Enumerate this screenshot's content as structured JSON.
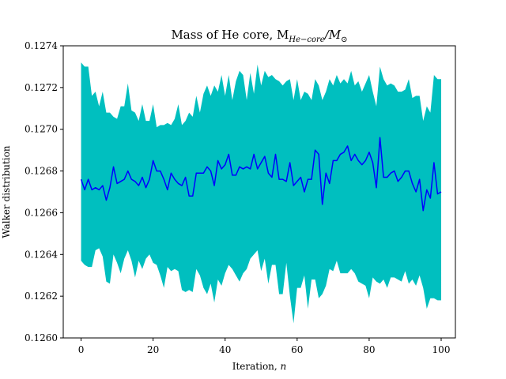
{
  "chart_data": {
    "type": "line",
    "title": "Mass of He core, M",
    "title_math_sub": "He−core",
    "title_math_tail": "/M",
    "title_math_sun": "⊙",
    "xlabel_text": "Iteration, ",
    "xlabel_var": "n",
    "ylabel": "Walker distribution",
    "xlim": [
      -4.95,
      103.95
    ],
    "ylim": [
      0.126,
      0.1274
    ],
    "xticks": [
      0,
      20,
      40,
      60,
      80,
      100
    ],
    "xtick_labels": [
      "0",
      "20",
      "40",
      "60",
      "80",
      "100"
    ],
    "yticks": [
      0.126,
      0.1262,
      0.1264,
      0.1266,
      0.1268,
      0.127,
      0.1272,
      0.1274
    ],
    "ytick_labels": [
      "0.1260",
      "0.1262",
      "0.1264",
      "0.1266",
      "0.1268",
      "0.1270",
      "0.1272",
      "0.1274"
    ],
    "grid": false,
    "band_color": "#00bfbf",
    "line_color": "#0000ff",
    "series": [
      {
        "kind": "median",
        "values": [
          0.12676,
          0.12671,
          0.12676,
          0.12671,
          0.12672,
          0.12671,
          0.12673,
          0.12666,
          0.12672,
          0.12682,
          0.12674,
          0.12675,
          0.12676,
          0.1268,
          0.12676,
          0.12675,
          0.12673,
          0.12677,
          0.12672,
          0.12676,
          0.12685,
          0.1268,
          0.1268,
          0.12676,
          0.12671,
          0.12679,
          0.12676,
          0.12674,
          0.12673,
          0.12677,
          0.12668,
          0.12668,
          0.12679,
          0.12679,
          0.12679,
          0.12682,
          0.1268,
          0.12673,
          0.12685,
          0.12681,
          0.12683,
          0.12688,
          0.12678,
          0.12678,
          0.12682,
          0.12681,
          0.12682,
          0.12681,
          0.12688,
          0.12681,
          0.12684,
          0.12687,
          0.12679,
          0.12677,
          0.12688,
          0.12676,
          0.12676,
          0.12675,
          0.12684,
          0.12673,
          0.12675,
          0.12677,
          0.1267,
          0.12676,
          0.12676,
          0.1269,
          0.12688,
          0.12664,
          0.12679,
          0.12674,
          0.12685,
          0.12685,
          0.12688,
          0.12689,
          0.12692,
          0.12685,
          0.12688,
          0.12685,
          0.12683,
          0.12685,
          0.12689,
          0.12684,
          0.12672,
          0.12696,
          0.12677,
          0.12677,
          0.12679,
          0.1268,
          0.12675,
          0.12677,
          0.1268,
          0.1268,
          0.12674,
          0.1267,
          0.12676,
          0.12661,
          0.12671,
          0.12667,
          0.12684,
          0.12669,
          0.1267
        ]
      },
      {
        "kind": "upper",
        "values": [
          0.12732,
          0.1273,
          0.1273,
          0.12716,
          0.12718,
          0.12711,
          0.12718,
          0.12708,
          0.12708,
          0.12706,
          0.12705,
          0.12711,
          0.12711,
          0.12722,
          0.12709,
          0.12708,
          0.12704,
          0.12712,
          0.12704,
          0.12704,
          0.12712,
          0.12701,
          0.12702,
          0.12702,
          0.12703,
          0.12702,
          0.12705,
          0.12712,
          0.12702,
          0.12704,
          0.12708,
          0.12706,
          0.12716,
          0.12708,
          0.12717,
          0.12721,
          0.12716,
          0.12721,
          0.12718,
          0.12726,
          0.12716,
          0.12726,
          0.12714,
          0.12723,
          0.12728,
          0.12726,
          0.12714,
          0.12727,
          0.12717,
          0.12731,
          0.12721,
          0.12728,
          0.12725,
          0.12726,
          0.12724,
          0.12723,
          0.12721,
          0.12723,
          0.12724,
          0.12714,
          0.12724,
          0.12714,
          0.12718,
          0.12717,
          0.12714,
          0.12724,
          0.12721,
          0.12714,
          0.12718,
          0.12724,
          0.12721,
          0.12726,
          0.12722,
          0.12724,
          0.12722,
          0.12728,
          0.12721,
          0.12723,
          0.12718,
          0.12722,
          0.12726,
          0.12718,
          0.12711,
          0.1273,
          0.12724,
          0.12721,
          0.12722,
          0.12721,
          0.12718,
          0.12718,
          0.12719,
          0.12724,
          0.12715,
          0.12716,
          0.12716,
          0.12704,
          0.12711,
          0.12708,
          0.12726,
          0.12724,
          0.12724
        ]
      },
      {
        "kind": "lower",
        "values": [
          0.12637,
          0.12635,
          0.12634,
          0.12634,
          0.12642,
          0.12643,
          0.12639,
          0.12627,
          0.12626,
          0.1264,
          0.12636,
          0.12631,
          0.12638,
          0.12642,
          0.12637,
          0.12629,
          0.12637,
          0.12633,
          0.12638,
          0.1264,
          0.12636,
          0.12635,
          0.1263,
          0.12624,
          0.12634,
          0.12632,
          0.12633,
          0.12632,
          0.12623,
          0.12622,
          0.12623,
          0.12622,
          0.12633,
          0.1263,
          0.12624,
          0.12621,
          0.12626,
          0.12617,
          0.12628,
          0.12625,
          0.12631,
          0.12635,
          0.12633,
          0.1263,
          0.12627,
          0.12631,
          0.12633,
          0.12638,
          0.1264,
          0.12642,
          0.12632,
          0.12638,
          0.12626,
          0.12635,
          0.12635,
          0.12621,
          0.12621,
          0.12636,
          0.1262,
          0.12607,
          0.12624,
          0.12624,
          0.1263,
          0.12614,
          0.12628,
          0.12628,
          0.12619,
          0.12621,
          0.12625,
          0.12633,
          0.12632,
          0.12637,
          0.12631,
          0.12631,
          0.12631,
          0.12633,
          0.12631,
          0.12627,
          0.12626,
          0.12625,
          0.12619,
          0.12629,
          0.12627,
          0.12626,
          0.12628,
          0.12624,
          0.12629,
          0.12629,
          0.12628,
          0.12627,
          0.12632,
          0.12626,
          0.12628,
          0.12625,
          0.1263,
          0.12624,
          0.12614,
          0.12619,
          0.12619,
          0.12618,
          0.12618
        ]
      }
    ]
  }
}
